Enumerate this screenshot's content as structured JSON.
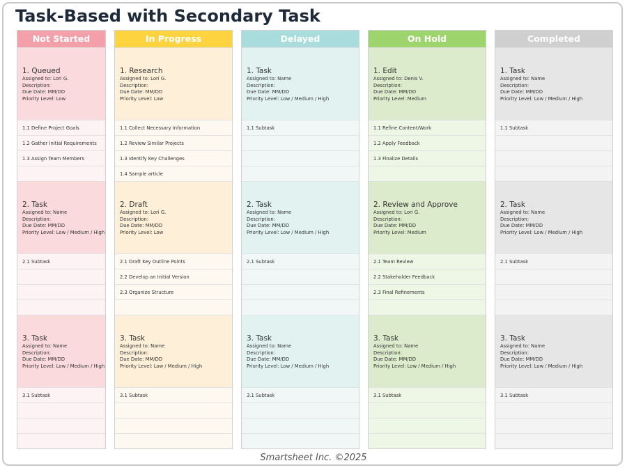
{
  "title": "Task-Based with Secondary Task",
  "footer": "Smartsheet Inc. ©2025",
  "columns": [
    {
      "header": "Not Started",
      "cards": [
        {
          "title": "1. Queued",
          "lines": [
            "Assigned to: Lori G.",
            "Description:",
            "Due Date: MM/DD",
            "Priority Level: Low"
          ],
          "subtasks": [
            "1.1 Define Project Goals",
            "1.2 Gather Initial Requirements",
            "1.3 Assign Team Members"
          ]
        },
        {
          "title": "2. Task",
          "lines": [
            "Assigned to: Name",
            "Description:",
            "Due Date: MM/DD",
            "Priority Level: Low / Medium / High"
          ],
          "subtasks": [
            "2.1 Subtask"
          ]
        },
        {
          "title": "3. Task",
          "lines": [
            "Assigned to: Name",
            "Description:",
            "Due Date: MM/DD",
            "Priority Level: Low / Medium / High"
          ],
          "subtasks": [
            "3.1 Subtask"
          ]
        }
      ]
    },
    {
      "header": "In Progress",
      "cards": [
        {
          "title": "1. Research",
          "lines": [
            "Assigned to: Lori G.",
            "Description:",
            "Due Date: MM/DD",
            "Priority Level: Low"
          ],
          "subtasks": [
            "1.1 Collect Necessary Information",
            "1.2 Review Similar Projects",
            "1.3 Identify Key Challenges",
            "1.4 Sample article"
          ]
        },
        {
          "title": "2. Draft",
          "lines": [
            "Assigned to: Lori G.",
            "Description:",
            "Due Date: MM/DD",
            "Priority Level: Low"
          ],
          "subtasks": [
            "2.1 Draft Key Outline Points",
            "2.2 Develop an Initial Version",
            "2.3 Organize Structure"
          ]
        },
        {
          "title": "3. Task",
          "lines": [
            "Assigned to: Name",
            "Description:",
            "Due Date: MM/DD",
            "Priority Level: Low / Medium / High"
          ],
          "subtasks": [
            "3.1 Subtask"
          ]
        }
      ]
    },
    {
      "header": "Delayed",
      "cards": [
        {
          "title": "1. Task",
          "lines": [
            "Assigned to: Name",
            "Description:",
            "Due Date: MM/DD",
            "Priority Level: Low / Medium / High"
          ],
          "subtasks": [
            "1.1 Subtask"
          ]
        },
        {
          "title": "2. Task",
          "lines": [
            "Assigned to: Name",
            "Description:",
            "Due Date: MM/DD",
            "Priority Level: Low / Medium / High"
          ],
          "subtasks": [
            "2.1 Subtask"
          ]
        },
        {
          "title": "3. Task",
          "lines": [
            "Assigned to: Name",
            "Description:",
            "Due Date: MM/DD",
            "Priority Level: Low / Medium / High"
          ],
          "subtasks": [
            "3.1 Subtask"
          ]
        }
      ]
    },
    {
      "header": "On Hold",
      "cards": [
        {
          "title": "1. Edit",
          "lines": [
            "Assigned to: Denis V.",
            "Description:",
            "Due Date: MM/DD",
            "Priority Level: Medium"
          ],
          "subtasks": [
            "1.1 Refine Content/Work",
            "1.2 Apply Feedback",
            "1.3 Finalize Details"
          ]
        },
        {
          "title": "2. Review and Approve",
          "lines": [
            "Assigned to: Lori G.",
            "Description:",
            "Due Date: MM/DD",
            "Priority Level: Medium"
          ],
          "subtasks": [
            "2.1 Team Review",
            "2.2 Stakeholder Feedback",
            "2.3 Final Refinements"
          ]
        },
        {
          "title": "3. Task",
          "lines": [
            "Assigned to: Name",
            "Description:",
            "Due Date: MM/DD",
            "Priority Level: Low / Medium / High"
          ],
          "subtasks": [
            "3.1 Subtask"
          ]
        }
      ]
    },
    {
      "header": "Completed",
      "cards": [
        {
          "title": "1. Task",
          "lines": [
            "Assigned to: Name",
            "Description:",
            "Due Date: MM/DD",
            "Priority Level: Low / Medium / High"
          ],
          "subtasks": [
            "1.1 Subtask"
          ]
        },
        {
          "title": "2. Task",
          "lines": [
            "Assigned to: Name",
            "Description:",
            "Due Date: MM/DD",
            "Priority Level: Low / Medium / High"
          ],
          "subtasks": [
            "2.1 Subtask"
          ]
        },
        {
          "title": "3. Task",
          "lines": [
            "Assigned to: Name",
            "Description:",
            "Due Date: MM/DD",
            "Priority Level: Low / Medium / High"
          ],
          "subtasks": [
            "3.1 Subtask"
          ]
        }
      ]
    }
  ]
}
